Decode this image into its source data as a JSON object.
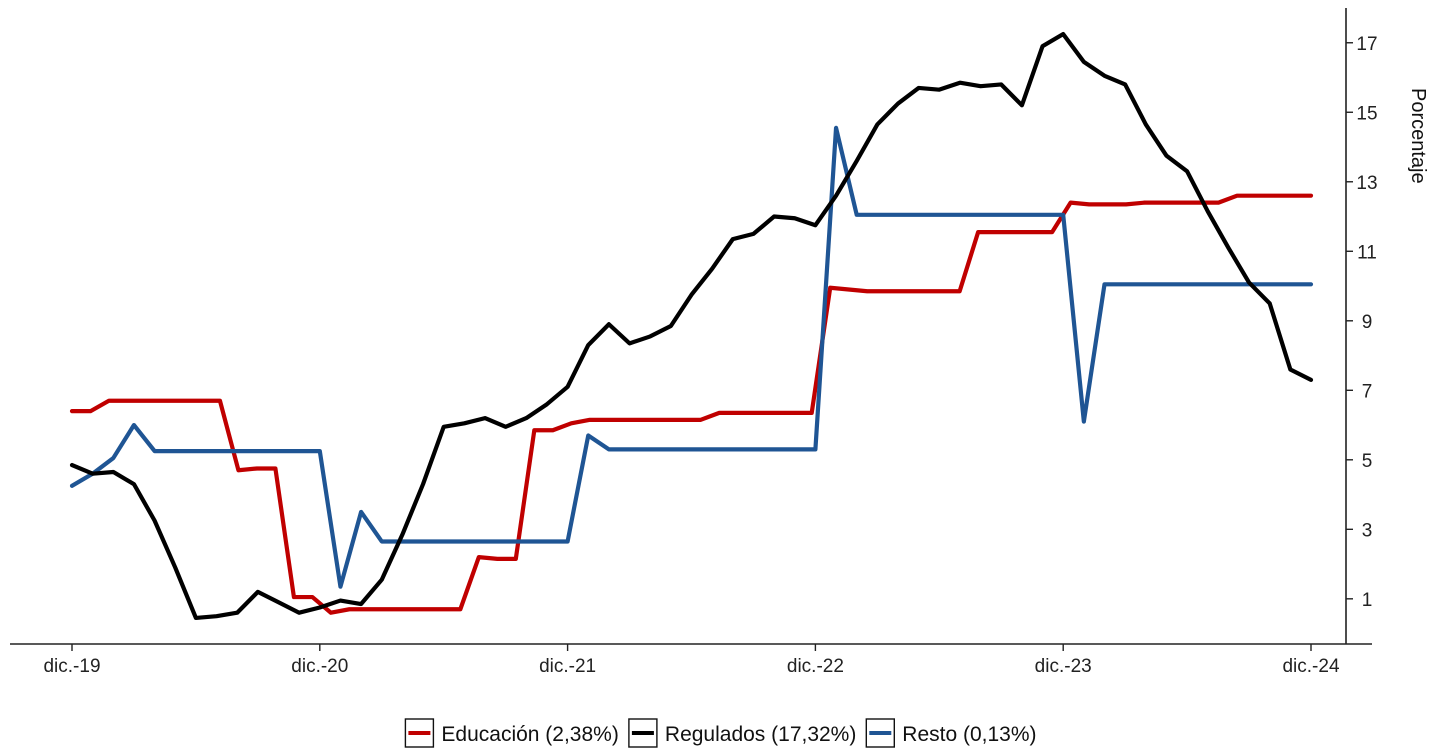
{
  "chart_data": {
    "type": "line",
    "title": "",
    "xlabel": "",
    "ylabel": "Porcentaje",
    "x_tick_labels": [
      "dic.-19",
      "dic.-20",
      "dic.-21",
      "dic.-22",
      "dic.-23",
      "dic.-24"
    ],
    "y_ticks": [
      1,
      3,
      5,
      7,
      9,
      11,
      13,
      15,
      17
    ],
    "ylim": [
      -0.3,
      18
    ],
    "x_start": "2019-12",
    "x_end": "2024-12",
    "grid": false,
    "legend_position": "bottom",
    "series": [
      {
        "name": "Educación (2,38%)",
        "color": "#c00000",
        "values": [
          6.4,
          6.4,
          6.7,
          6.7,
          6.7,
          6.7,
          6.7,
          6.7,
          6.7,
          4.7,
          4.75,
          4.75,
          1.05,
          1.05,
          0.6,
          0.7,
          0.7,
          0.7,
          0.7,
          0.7,
          0.7,
          0.7,
          2.2,
          2.15,
          2.15,
          5.85,
          5.85,
          6.05,
          6.15,
          6.15,
          6.15,
          6.15,
          6.15,
          6.15,
          6.15,
          6.35,
          6.35,
          6.35,
          6.35,
          6.35,
          6.35,
          9.95,
          9.9,
          9.85,
          9.85,
          9.85,
          9.85,
          9.85,
          9.85,
          11.55,
          11.55,
          11.55,
          11.55,
          11.55,
          12.4,
          12.35,
          12.35,
          12.35,
          12.4,
          12.4,
          12.4,
          12.4,
          12.4,
          12.6,
          12.6,
          12.6,
          12.6,
          12.6
        ]
      },
      {
        "name": "Regulados (17,32%)",
        "color": "#000000",
        "values": [
          4.85,
          4.6,
          4.65,
          4.3,
          3.25,
          1.9,
          0.45,
          0.5,
          0.6,
          1.2,
          0.9,
          0.6,
          0.75,
          0.95,
          0.85,
          1.55,
          2.85,
          4.3,
          5.95,
          6.05,
          6.2,
          5.95,
          6.2,
          6.6,
          7.1,
          8.3,
          8.9,
          8.35,
          8.55,
          8.85,
          9.75,
          10.5,
          11.35,
          11.5,
          12.0,
          11.95,
          11.75,
          12.6,
          13.6,
          14.65,
          15.25,
          15.7,
          15.65,
          15.85,
          15.75,
          15.8,
          15.2,
          16.9,
          17.25,
          16.45,
          16.05,
          15.8,
          14.65,
          13.75,
          13.3,
          12.15,
          11.1,
          10.1,
          9.5,
          7.6,
          7.3
        ]
      },
      {
        "name": "Resto (0,13%)",
        "color": "#1f5594",
        "values": [
          4.25,
          4.6,
          5.05,
          6.0,
          5.25,
          5.25,
          5.25,
          5.25,
          5.25,
          5.25,
          5.25,
          5.25,
          5.25,
          1.35,
          3.5,
          2.65,
          2.65,
          2.65,
          2.65,
          2.65,
          2.65,
          2.65,
          2.65,
          2.65,
          2.65,
          5.7,
          5.3,
          5.3,
          5.3,
          5.3,
          5.3,
          5.3,
          5.3,
          5.3,
          5.3,
          5.3,
          5.3,
          14.55,
          12.05,
          12.05,
          12.05,
          12.05,
          12.05,
          12.05,
          12.05,
          12.05,
          12.05,
          12.05,
          12.05,
          6.1,
          10.05,
          10.05,
          10.05,
          10.05,
          10.05,
          10.05,
          10.05,
          10.05,
          10.05,
          10.05,
          10.05
        ]
      }
    ]
  }
}
